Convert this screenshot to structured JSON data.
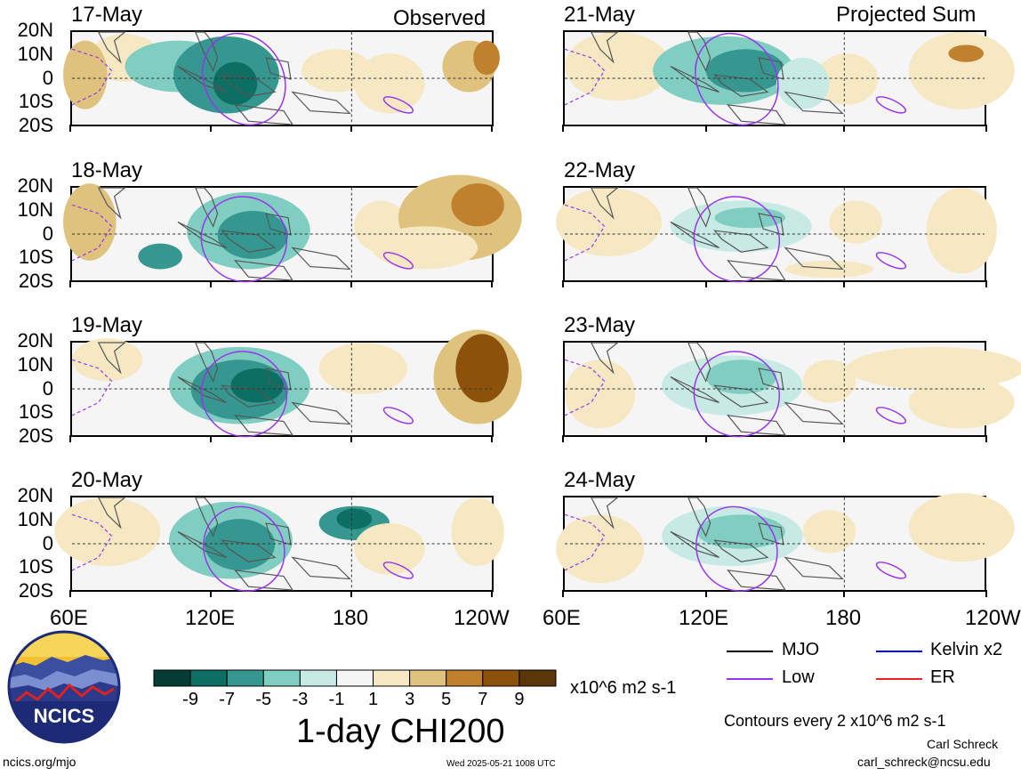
{
  "columns": [
    {
      "title": "Observed",
      "panels": [
        "17-May",
        "18-May",
        "19-May",
        "20-May"
      ]
    },
    {
      "title": "Projected Sum",
      "panels": [
        "21-May",
        "22-May",
        "23-May",
        "24-May"
      ]
    }
  ],
  "lat_labels": [
    "20N",
    "10N",
    "0",
    "10S",
    "20S"
  ],
  "lon_labels": [
    "60E",
    "120E",
    "180",
    "120W"
  ],
  "lon_labels_right": [
    "60E",
    "120E",
    "180",
    "120W"
  ],
  "colorbar": {
    "colors": [
      "#053c35",
      "#0d6e63",
      "#35978f",
      "#80cdc1",
      "#c7eae5",
      "#f5f5f5",
      "#f6e8c3",
      "#dfc27d",
      "#bf812d",
      "#8c510a",
      "#5a3608"
    ],
    "tick_labels": [
      "-9",
      "-7",
      "-5",
      "-3",
      "-1",
      "1",
      "3",
      "5",
      "7",
      "9"
    ],
    "units": "x10^6 m2 s-1"
  },
  "title": "1-day CHI200",
  "legend": {
    "items": [
      {
        "label": "MJO",
        "color": "#000000"
      },
      {
        "label": "Kelvin x2",
        "color": "#0000ff"
      },
      {
        "label": "Low",
        "color": "#9933ee"
      },
      {
        "label": "ER",
        "color": "#ee2222"
      }
    ],
    "contours_note": "Contours every 2 x10^6 m2 s-1"
  },
  "logo": {
    "text": "NCICS"
  },
  "footer": {
    "url": "ncics.org/mjo",
    "timestamp": "Wed 2025-05-21 1008 UTC",
    "author": "Carl Schreck",
    "email": "carl_schreck@ncsu.edu"
  }
}
